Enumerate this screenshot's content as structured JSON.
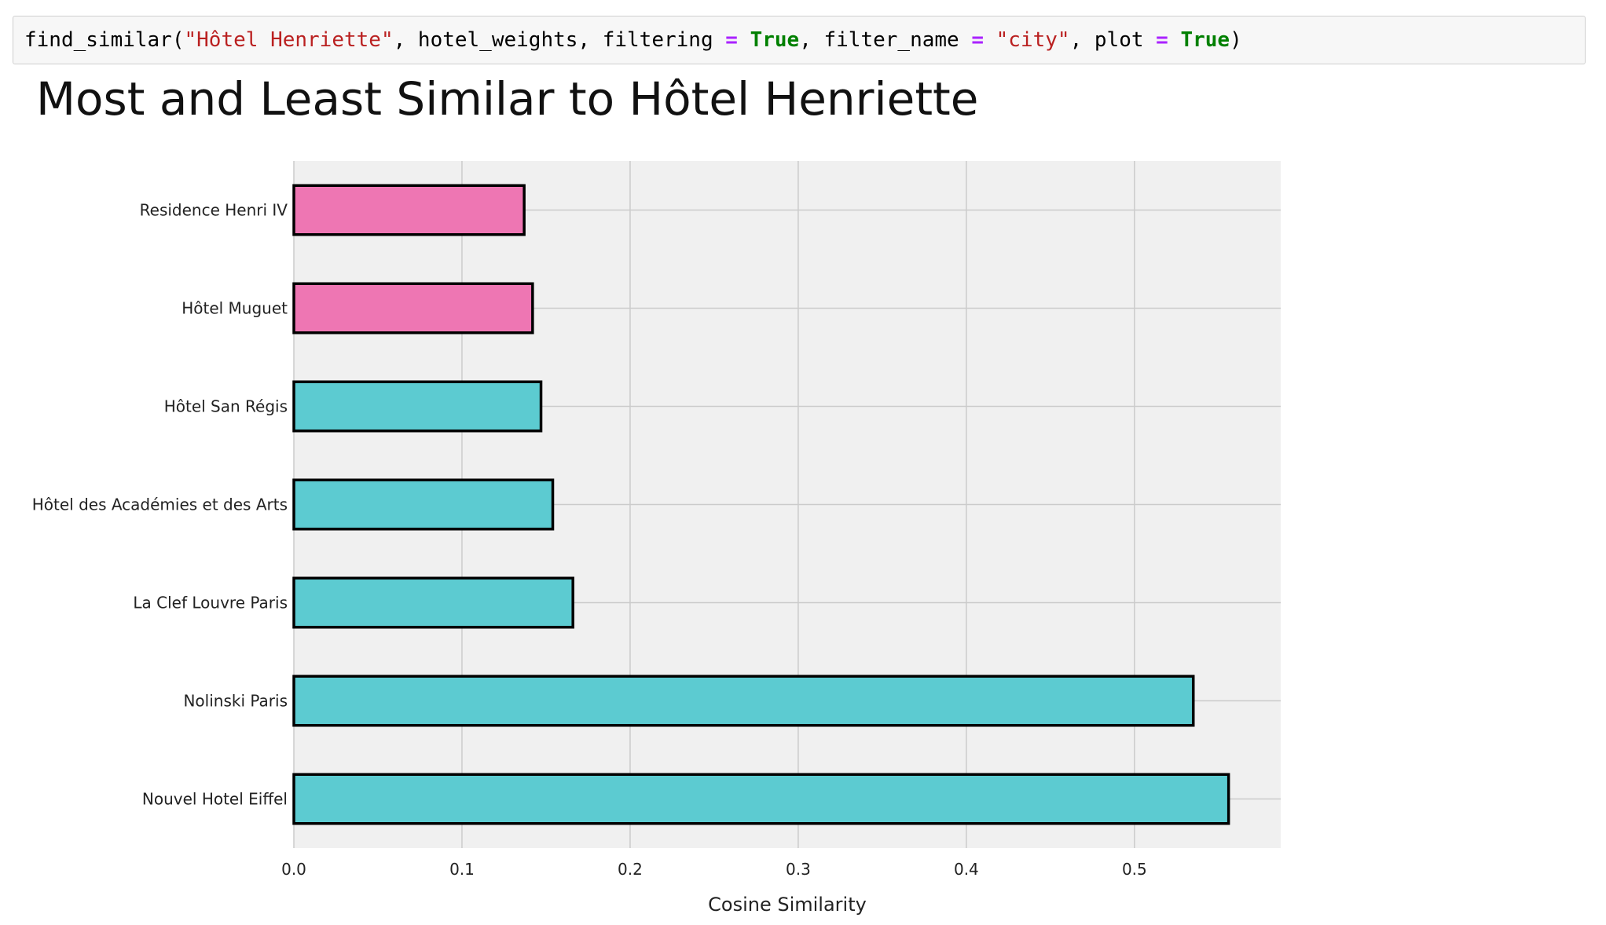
{
  "code_cell": {
    "tokens": [
      {
        "text": "find_similar(",
        "kind": "plain"
      },
      {
        "text": "\"Hôtel Henriette\"",
        "kind": "str"
      },
      {
        "text": ", hotel_weights, filtering ",
        "kind": "plain"
      },
      {
        "text": "=",
        "kind": "op"
      },
      {
        "text": " ",
        "kind": "plain"
      },
      {
        "text": "True",
        "kind": "kw"
      },
      {
        "text": ", filter_name ",
        "kind": "plain"
      },
      {
        "text": "=",
        "kind": "op"
      },
      {
        "text": " ",
        "kind": "plain"
      },
      {
        "text": "\"city\"",
        "kind": "str"
      },
      {
        "text": ", plot ",
        "kind": "plain"
      },
      {
        "text": "=",
        "kind": "op"
      },
      {
        "text": " ",
        "kind": "plain"
      },
      {
        "text": "True",
        "kind": "kw"
      },
      {
        "text": ")",
        "kind": "plain"
      }
    ]
  },
  "chart_data": {
    "type": "bar",
    "orientation": "horizontal",
    "title": "Most and Least Similar to Hôtel Henriette",
    "xlabel": "Cosine Similarity",
    "ylabel": "",
    "categories": [
      "Residence Henri IV",
      "Hôtel Muguet",
      "Hôtel San Régis",
      "Hôtel des Académies et des Arts",
      "La Clef Louvre Paris",
      "Nolinski Paris",
      "Nouvel Hotel Eiffel"
    ],
    "values": [
      0.137,
      0.142,
      0.147,
      0.154,
      0.166,
      0.535,
      0.556
    ],
    "bar_colors": [
      "#ee76b3",
      "#ee76b3",
      "#5ccbd1",
      "#5ccbd1",
      "#5ccbd1",
      "#5ccbd1",
      "#5ccbd1"
    ],
    "xlim": [
      0,
      0.587
    ],
    "xticks": [
      "0.0",
      "0.1",
      "0.2",
      "0.3",
      "0.4",
      "0.5"
    ],
    "grid": true,
    "background": "#f0f0f0",
    "grid_color": "#cbcbcb",
    "edge_color": "#000000"
  }
}
